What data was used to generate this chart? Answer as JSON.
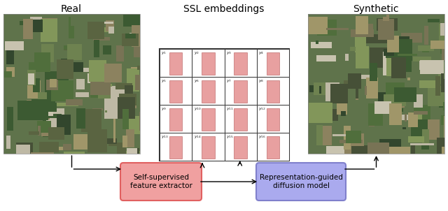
{
  "title_real": "Real",
  "title_synthetic": "Synthetic",
  "title_ssl": "SSL embeddings",
  "box1_text": "Self-supervised\nfeature extractor",
  "box2_text": "Representation-guided\ndiffusion model",
  "box1_edge_color": "#E06060",
  "box1_facecolor": "#F0A0A0",
  "box2_edge_color": "#8080CC",
  "box2_facecolor": "#AAAAEE",
  "grid_rows": 4,
  "grid_cols": 4,
  "bar_color": "#E8A0A0",
  "bar_edge_color": "#C07070",
  "grid_line_color": "#333333",
  "background_color": "#ffffff",
  "fig_width": 6.4,
  "fig_height": 3.02
}
